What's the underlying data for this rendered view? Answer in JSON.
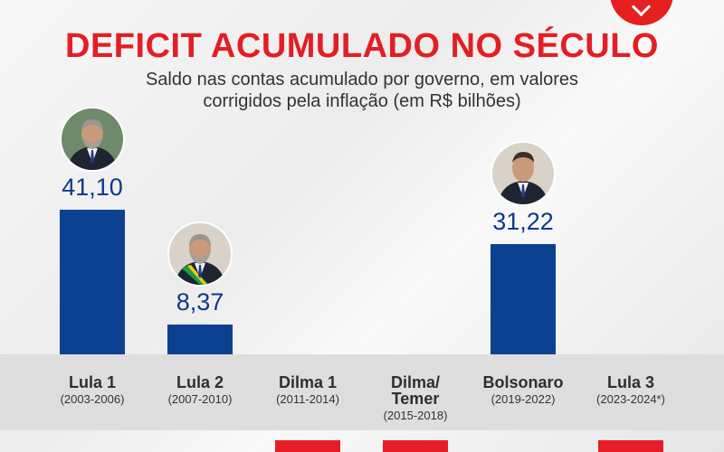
{
  "header": {
    "title": "DEFICIT ACUMULADO NO SÉCULO",
    "subtitle_line1": "Saldo nas contas acumulado por governo, em valores",
    "subtitle_line2": "corrigidos pela inflação (em R$ bilhões)"
  },
  "colors": {
    "bar": "#0c4192",
    "value_text": "#0c3a8a",
    "title": "#e41e24",
    "negative_marker": "#e41e24"
  },
  "chart_data": {
    "type": "bar",
    "title": "DEFICIT ACUMULADO NO SÉCULO",
    "subtitle": "Saldo nas contas acumulado por governo, em valores corrigidos pela inflação (em R$ bilhões)",
    "categories": [
      "Lula 1",
      "Lula 2",
      "Dilma 1",
      "Dilma/ Temer",
      "Bolsonaro",
      "Lula 3"
    ],
    "periods": [
      "(2003-2006)",
      "(2007-2010)",
      "(2011-2014)",
      "(2015-2018)",
      "(2019-2022)",
      "(2023-2024*)"
    ],
    "values": [
      41.1,
      8.37,
      null,
      null,
      31.22,
      null
    ],
    "value_labels": [
      "41,10",
      "8,37",
      "",
      "",
      "31,22",
      ""
    ],
    "negative_bars_visible": [
      false,
      false,
      true,
      true,
      false,
      true
    ],
    "xlabel": "",
    "ylabel": "",
    "grid": false
  }
}
